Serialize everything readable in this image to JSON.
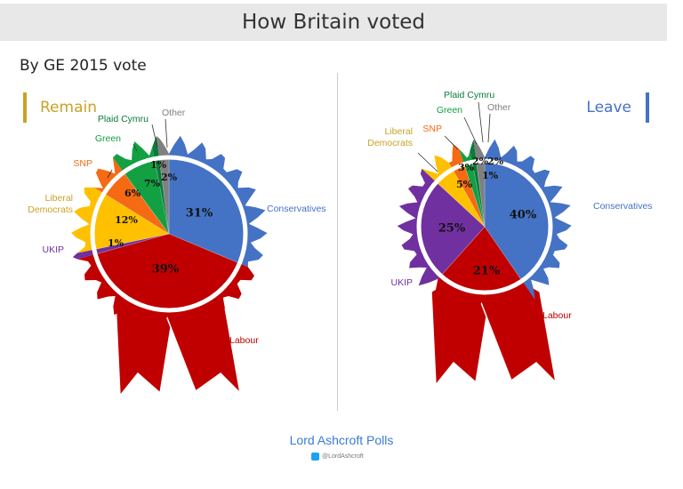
{
  "title": "How Britain voted",
  "subtitle": "By GE 2015 vote",
  "footer": {
    "source": "Lord Ashcroft Polls",
    "handle": "@LordAshcroft"
  },
  "chart_data": [
    {
      "type": "pie",
      "title": "Remain",
      "title_color": "#c9a227",
      "slices": [
        {
          "label": "Conservatives",
          "value": 31,
          "data_label": "31%",
          "color": "#4472c4"
        },
        {
          "label": "Labour",
          "value": 39,
          "data_label": "39%",
          "color": "#c00000"
        },
        {
          "label": "UKIP",
          "value": 1,
          "data_label": "1%",
          "color": "#7030a0"
        },
        {
          "label": "Liberal Democrats",
          "value": 12,
          "data_label": "12%",
          "color": "#ffc000"
        },
        {
          "label": "SNP",
          "value": 6,
          "data_label": "6%",
          "color": "#f56a12"
        },
        {
          "label": "Green",
          "value": 7,
          "data_label": "7%",
          "color": "#12a043"
        },
        {
          "label": "Plaid Cymru",
          "value": 1,
          "data_label": "1%",
          "color": "#0b7a3b"
        },
        {
          "label": "Other",
          "value": 2,
          "data_label": "2%",
          "color": "#808080"
        }
      ]
    },
    {
      "type": "pie",
      "title": "Leave",
      "title_color": "#4472c4",
      "slices": [
        {
          "label": "Conservatives",
          "value": 40,
          "data_label": "40%",
          "color": "#4472c4"
        },
        {
          "label": "Labour",
          "value": 21,
          "data_label": "21%",
          "color": "#c00000"
        },
        {
          "label": "UKIP",
          "value": 25,
          "data_label": "25%",
          "color": "#7030a0"
        },
        {
          "label": "Liberal Democrats",
          "value": 5,
          "data_label": "5%",
          "color": "#ffc000"
        },
        {
          "label": "SNP",
          "value": 3,
          "data_label": "3%",
          "color": "#f56a12"
        },
        {
          "label": "Green",
          "value": 2,
          "data_label": "2%",
          "color": "#12a043"
        },
        {
          "label": "Plaid Cymru",
          "value": 1,
          "data_label": "1%",
          "color": "#0b7a3b"
        },
        {
          "label": "Other",
          "value": 2,
          "data_label": "2%",
          "color": "#808080"
        }
      ]
    }
  ]
}
